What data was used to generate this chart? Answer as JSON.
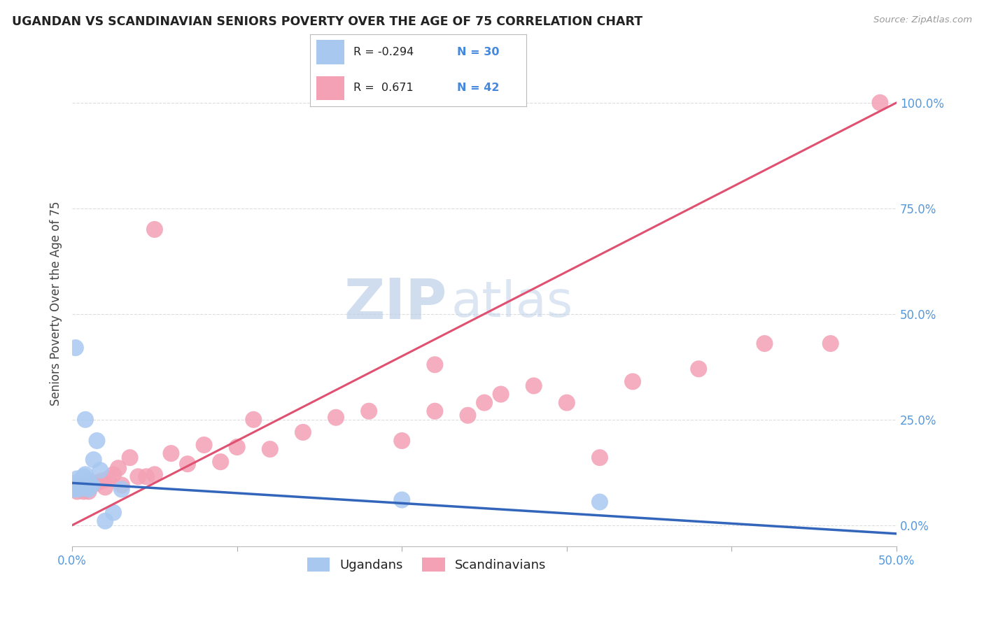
{
  "title": "UGANDAN VS SCANDINAVIAN SENIORS POVERTY OVER THE AGE OF 75 CORRELATION CHART",
  "source": "Source: ZipAtlas.com",
  "ylabel": "Seniors Poverty Over the Age of 75",
  "xlim": [
    0.0,
    0.5
  ],
  "ylim": [
    -0.05,
    1.1
  ],
  "xticks": [
    0.0,
    0.1,
    0.2,
    0.3,
    0.4,
    0.5
  ],
  "yticks": [
    0.0,
    0.25,
    0.5,
    0.75,
    1.0
  ],
  "ytick_labels": [
    "0.0%",
    "25.0%",
    "50.0%",
    "75.0%",
    "100.0%"
  ],
  "xtick_labels": [
    "0.0%",
    "",
    "",
    "",
    "",
    "50.0%"
  ],
  "watermark_zip": "ZIP",
  "watermark_atlas": "atlas",
  "legend_R_blue": "-0.294",
  "legend_N_blue": "30",
  "legend_R_pink": "0.671",
  "legend_N_pink": "42",
  "blue_color": "#A8C8F0",
  "pink_color": "#F4A0B5",
  "blue_line_color": "#3366BB",
  "pink_line_color": "#E05070",
  "ugandan_x": [
    0.001,
    0.002,
    0.002,
    0.003,
    0.003,
    0.004,
    0.004,
    0.005,
    0.005,
    0.006,
    0.006,
    0.007,
    0.007,
    0.008,
    0.008,
    0.009,
    0.01,
    0.01,
    0.011,
    0.012,
    0.013,
    0.015,
    0.017,
    0.02,
    0.025,
    0.03,
    0.002,
    0.008,
    0.2,
    0.32
  ],
  "ugandan_y": [
    0.085,
    0.095,
    0.1,
    0.09,
    0.11,
    0.1,
    0.085,
    0.095,
    0.105,
    0.095,
    0.1,
    0.095,
    0.115,
    0.095,
    0.12,
    0.09,
    0.085,
    0.105,
    0.095,
    0.095,
    0.155,
    0.2,
    0.13,
    0.01,
    0.03,
    0.085,
    0.42,
    0.25,
    0.06,
    0.055
  ],
  "scandinavian_x": [
    0.003,
    0.005,
    0.007,
    0.008,
    0.01,
    0.012,
    0.015,
    0.018,
    0.02,
    0.022,
    0.025,
    0.028,
    0.03,
    0.035,
    0.04,
    0.045,
    0.05,
    0.06,
    0.07,
    0.08,
    0.09,
    0.1,
    0.11,
    0.12,
    0.14,
    0.16,
    0.18,
    0.2,
    0.22,
    0.24,
    0.25,
    0.26,
    0.28,
    0.3,
    0.34,
    0.38,
    0.42,
    0.46,
    0.05,
    0.32,
    0.49,
    0.22
  ],
  "scandinavian_y": [
    0.08,
    0.095,
    0.08,
    0.095,
    0.08,
    0.095,
    0.1,
    0.105,
    0.09,
    0.11,
    0.12,
    0.135,
    0.095,
    0.16,
    0.115,
    0.115,
    0.12,
    0.17,
    0.145,
    0.19,
    0.15,
    0.185,
    0.25,
    0.18,
    0.22,
    0.255,
    0.27,
    0.2,
    0.27,
    0.26,
    0.29,
    0.31,
    0.33,
    0.29,
    0.34,
    0.37,
    0.43,
    0.43,
    0.7,
    0.16,
    1.0,
    0.38
  ],
  "pink_line_x0": 0.0,
  "pink_line_y0": 0.0,
  "pink_line_x1": 0.5,
  "pink_line_y1": 1.0,
  "blue_line_x0": 0.0,
  "blue_line_y0": 0.1,
  "blue_line_x1": 0.5,
  "blue_line_y1": -0.02,
  "background_color": "#FFFFFF",
  "grid_color": "#DDDDDD"
}
